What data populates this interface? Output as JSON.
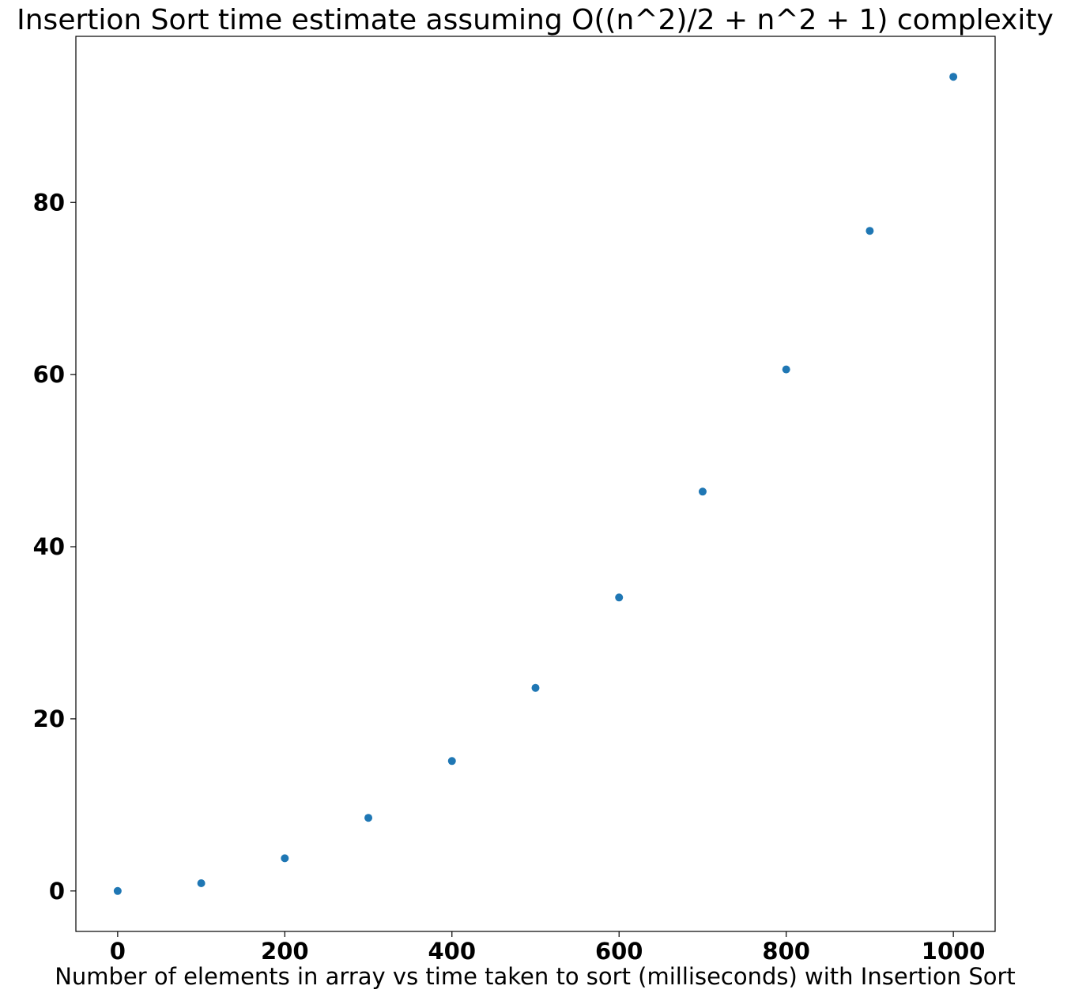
{
  "chart_data": {
    "type": "scatter",
    "title": "Insertion Sort time estimate assuming O((n^2)/2 + n^2 + 1) complexity",
    "xlabel": "Number of elements in array vs time taken to sort (milliseconds) with Insertion Sort",
    "ylabel": "",
    "x": [
      0,
      100,
      200,
      300,
      400,
      500,
      600,
      700,
      800,
      900,
      1000
    ],
    "y": [
      0.0,
      0.9,
      3.8,
      8.5,
      15.1,
      23.6,
      34.1,
      46.4,
      60.6,
      76.7,
      94.6
    ],
    "xlim": [
      -50,
      1050
    ],
    "ylim": [
      -4.7,
      99.3
    ],
    "xticks": [
      0,
      200,
      400,
      600,
      800,
      1000
    ],
    "yticks": [
      0,
      20,
      40,
      60,
      80
    ],
    "xtick_labels": [
      "0",
      "200",
      "400",
      "600",
      "800",
      "1000"
    ],
    "ytick_labels": [
      "0",
      "20",
      "40",
      "60",
      "80"
    ],
    "marker_color": "#1f77b4",
    "grid": false,
    "legend": "none"
  }
}
